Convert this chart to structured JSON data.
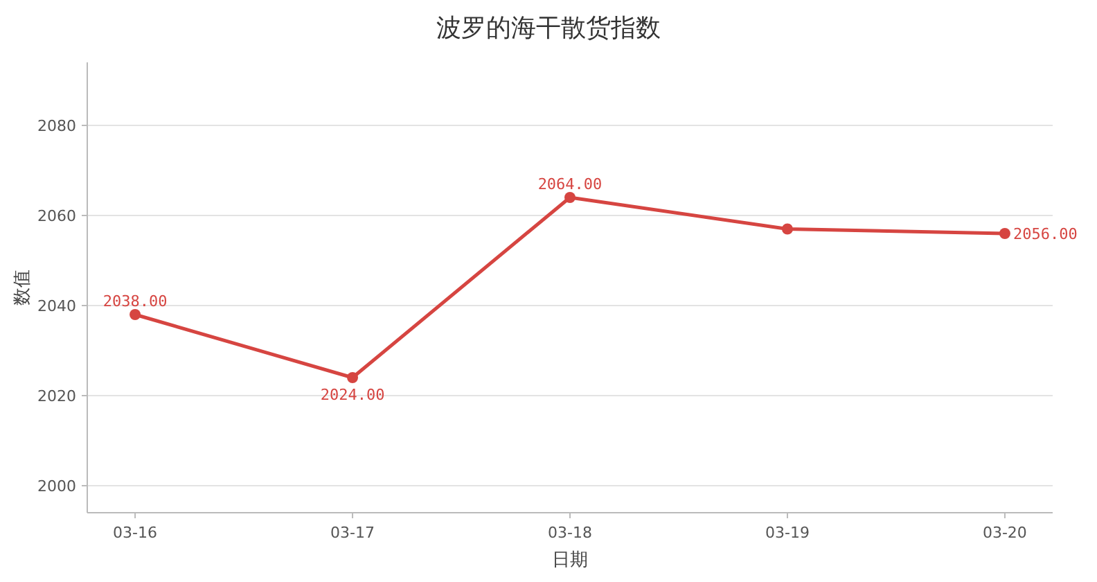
{
  "chart_data": {
    "type": "line",
    "title": "波罗的海干散货指数",
    "xlabel": "日期",
    "ylabel": "数值",
    "categories": [
      "03-16",
      "03-17",
      "03-18",
      "03-19",
      "03-20"
    ],
    "series": [
      {
        "color": "#d64541",
        "values": [
          2038,
          2024,
          2064,
          2057,
          2056
        ],
        "value_labels": [
          "2038.00",
          "2024.00",
          "2064.00",
          null,
          "2056.00"
        ]
      }
    ],
    "ylim": [
      1994,
      2094
    ],
    "yticks": [
      2000,
      2020,
      2040,
      2060,
      2080
    ],
    "grid": "y",
    "marker": "circle",
    "line_style": "solid"
  }
}
